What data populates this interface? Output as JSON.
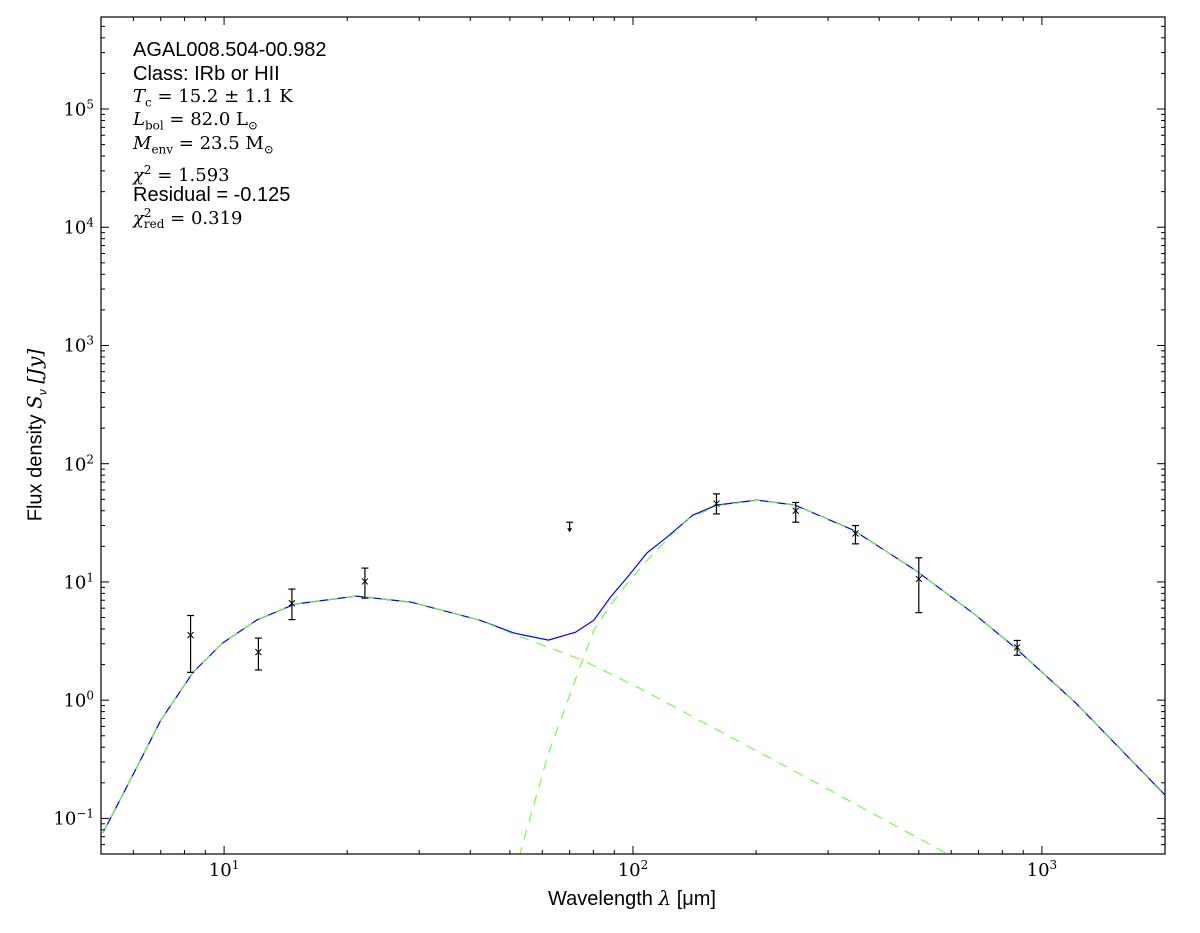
{
  "chart_data": {
    "type": "line",
    "xlabel": {
      "text": "Wavelength",
      "symbol": "λ",
      "unit": "[μm]"
    },
    "ylabel": {
      "text": "Flux density",
      "symbol": "S",
      "sub": "ν",
      "unit": "[Jy]"
    },
    "xscale": "log",
    "yscale": "log",
    "xlim": [
      5,
      2000
    ],
    "ylim": [
      0.05,
      600000
    ],
    "grid": false,
    "x_ticks": [
      {
        "base": "10",
        "exp": "1",
        "value": 10
      },
      {
        "base": "10",
        "exp": "2",
        "value": 100
      },
      {
        "base": "10",
        "exp": "3",
        "value": 1000
      }
    ],
    "y_ticks": [
      {
        "base": "10",
        "exp": "−1",
        "value": 0.1
      },
      {
        "base": "10",
        "exp": "0",
        "value": 1
      },
      {
        "base": "10",
        "exp": "1",
        "value": 10
      },
      {
        "base": "10",
        "exp": "2",
        "value": 100
      },
      {
        "base": "10",
        "exp": "3",
        "value": 1000
      },
      {
        "base": "10",
        "exp": "4",
        "value": 10000
      },
      {
        "base": "10",
        "exp": "5",
        "value": 100000
      }
    ],
    "annotations": {
      "source": "AGAL008.504-00.982",
      "class": "Class: IRb or HII",
      "tc": {
        "var": "T",
        "sub": "c",
        "value": " = 15.2 ± 1.1 K"
      },
      "lbol": {
        "var": "L",
        "sub": "bol",
        "value": " = 82.0 L",
        "unit_sub": "⊙"
      },
      "menv": {
        "var": "M",
        "sub": "env",
        "value": " = 23.5 M",
        "unit_sub": "⊙"
      },
      "chi2": {
        "var": "χ",
        "sup": "2",
        "value": " = 1.593"
      },
      "residual": "Residual = -0.125",
      "chi2red": {
        "var": "χ",
        "sup": "2",
        "sub": "red",
        "value": " = 0.319"
      }
    },
    "colors": {
      "total": "#0000ff",
      "components": "#66ff33",
      "points": "#000000"
    },
    "series": [
      {
        "role": "total model",
        "style": "solid",
        "color": "#0000ff",
        "x": [
          5.05,
          6.12,
          7.0,
          8.41,
          9.91,
          12.0,
          14.9,
          21.0,
          28.6,
          42.2,
          51.2,
          62.1,
          72.4,
          80.2,
          88.1,
          97.0,
          108,
          121,
          140,
          160,
          201,
          249,
          346,
          490,
          679,
          857,
          1213,
          1968,
          2000
        ],
        "y": [
          0.075,
          0.271,
          0.677,
          1.73,
          3.04,
          4.75,
          6.49,
          7.59,
          6.75,
          4.75,
          3.69,
          3.22,
          3.76,
          4.75,
          7.44,
          11.0,
          17.5,
          23.9,
          36.7,
          44.7,
          49.2,
          44.7,
          27.4,
          12.6,
          5.44,
          2.81,
          0.94,
          0.167,
          0.158
        ]
      },
      {
        "role": "warm component",
        "style": "dashed",
        "color": "#66ff33",
        "x": [
          5.05,
          6.12,
          7.0,
          8.41,
          9.91,
          12.0,
          14.9,
          21.0,
          28.6,
          42.2,
          51.2,
          62.1,
          75.3,
          103,
          259,
          582,
          640
        ],
        "y": [
          0.075,
          0.271,
          0.677,
          1.73,
          3.04,
          4.75,
          6.49,
          7.59,
          6.75,
          4.75,
          3.6,
          2.8,
          2.18,
          1.28,
          0.232,
          0.051,
          0.043
        ]
      },
      {
        "role": "cold component",
        "style": "dashed",
        "color": "#66ff33",
        "x": [
          50,
          52.9,
          62.1,
          75.3,
          80.2,
          88.1,
          97.0,
          110,
          135,
          160,
          201,
          249,
          346,
          490,
          679,
          857,
          1213,
          1968,
          2000
        ],
        "y": [
          0.035,
          0.05,
          0.354,
          2.18,
          3.91,
          6.36,
          9.8,
          16.2,
          33.4,
          44.0,
          49.0,
          44.6,
          27.3,
          12.6,
          5.43,
          2.8,
          0.935,
          0.165,
          0.155
        ]
      }
    ],
    "points": [
      {
        "x": 8.28,
        "y": 3.55,
        "lo": 1.72,
        "hi": 5.2
      },
      {
        "x": 12.13,
        "y": 2.55,
        "lo": 1.8,
        "hi": 3.35
      },
      {
        "x": 14.65,
        "y": 6.6,
        "lo": 4.8,
        "hi": 8.7
      },
      {
        "x": 22.1,
        "y": 10.1,
        "lo": 7.3,
        "hi": 13.1
      },
      {
        "x": 160,
        "y": 46,
        "lo": 37.6,
        "hi": 55.6
      },
      {
        "x": 250,
        "y": 40,
        "lo": 32,
        "hi": 47
      },
      {
        "x": 350,
        "y": 25.7,
        "lo": 21,
        "hi": 30
      },
      {
        "x": 500,
        "y": 10.6,
        "lo": 5.5,
        "hi": 16
      },
      {
        "x": 870,
        "y": 2.8,
        "lo": 2.4,
        "hi": 3.2
      }
    ],
    "upper_limits": [
      {
        "x": 70,
        "y": 32
      }
    ]
  }
}
